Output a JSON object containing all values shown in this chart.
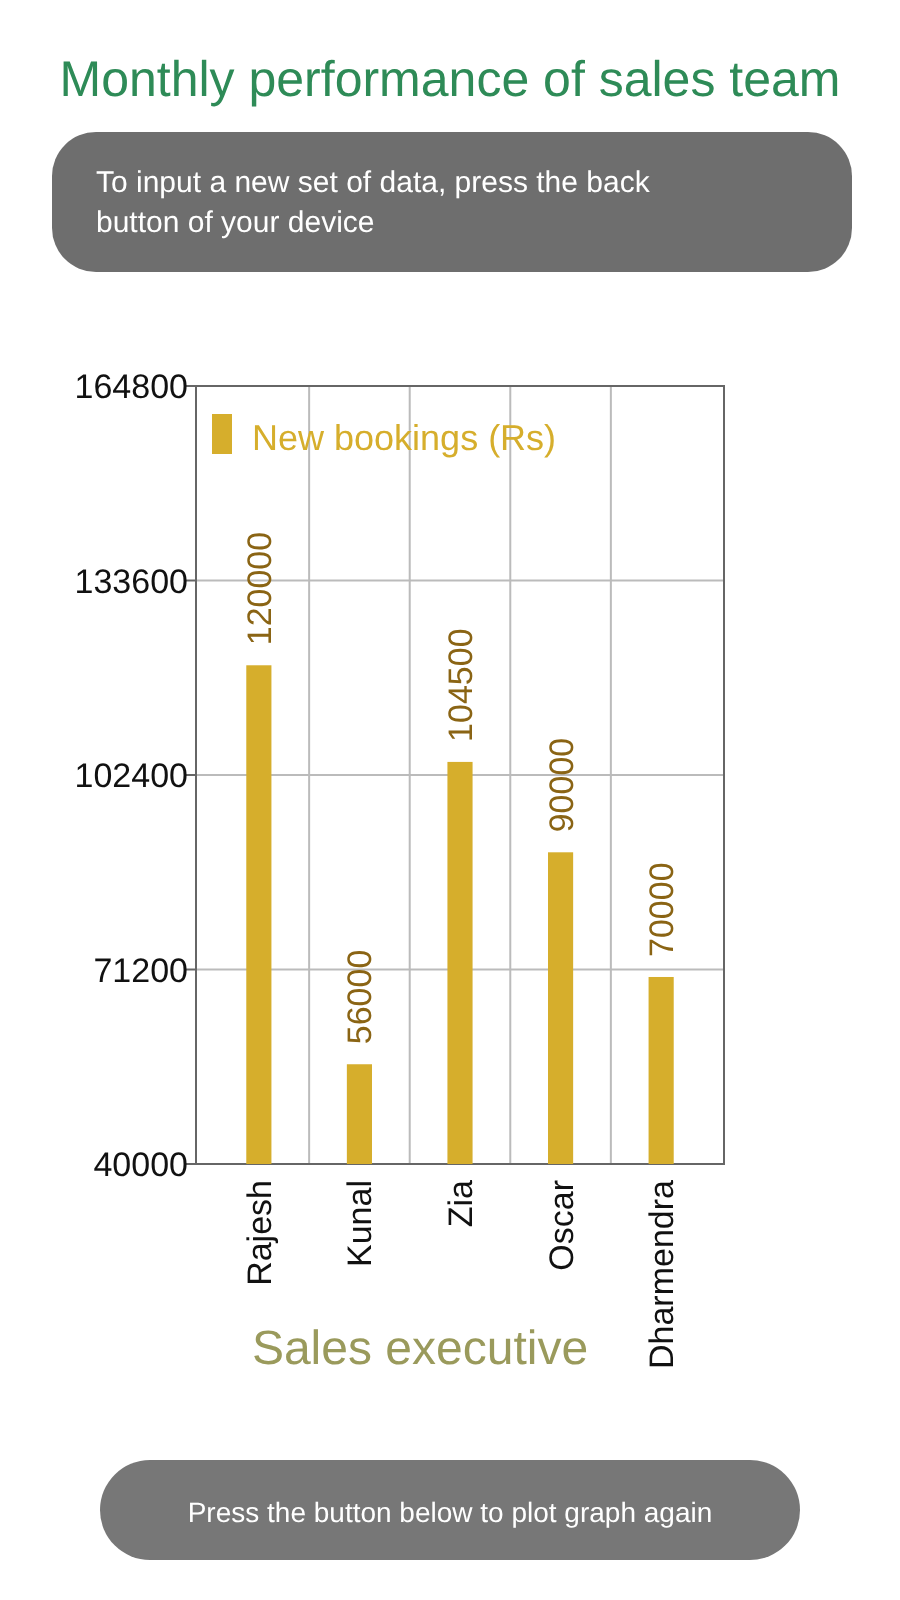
{
  "chart_data": {
    "type": "bar",
    "title": "Monthly performance of sales team",
    "xlabel": "Sales executive",
    "categories": [
      "Rajesh",
      "Kunal",
      "Zia",
      "Oscar",
      "Dharmendra"
    ],
    "series": [
      {
        "name": "New bookings (Rs)",
        "color": "#d6ae2c",
        "values": [
          120000,
          56000,
          104500,
          90000,
          70000
        ]
      }
    ],
    "ylim": [
      40000,
      164800
    ],
    "yticks": [
      40000,
      71200,
      102400,
      133600,
      164800
    ],
    "grid": true,
    "legend": "top left",
    "data_labels": true,
    "annotations": [
      "To input a new set of data, press the back button of your device",
      "Press the button below to plot graph again"
    ]
  }
}
